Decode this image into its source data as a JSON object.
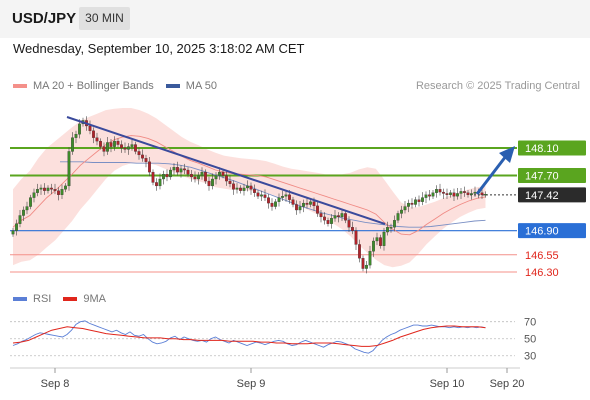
{
  "header": {
    "symbol": "USD/JPY",
    "timeframe": "30 MIN"
  },
  "datetime": "Wednesday, September 10, 2025 3:18:02 AM CET",
  "credit": "Research © 2025 Trading Central",
  "legend_main": [
    {
      "label": "MA 20 + Bollinger Bands",
      "color": "#f4908a"
    },
    {
      "label": "MA 50",
      "color": "#3a5a9c"
    }
  ],
  "legend_rsi": [
    {
      "label": "RSI",
      "color": "#5b7fd6"
    },
    {
      "label": "9MA",
      "color": "#e0261c"
    }
  ],
  "chart_data": {
    "type": "candlestick",
    "x_ticks": [
      "Sep 8",
      "Sep 9",
      "Sep 10",
      "Sep 20"
    ],
    "levels": [
      {
        "value": 148.1,
        "label": "148.10",
        "kind": "target"
      },
      {
        "value": 147.7,
        "label": "147.70",
        "kind": "target"
      },
      {
        "value": 147.42,
        "label": "147.42",
        "kind": "current"
      },
      {
        "value": 146.9,
        "label": "146.90",
        "kind": "pivot"
      },
      {
        "value": 146.55,
        "label": "146.55",
        "kind": "support"
      },
      {
        "value": 146.3,
        "label": "146.30",
        "kind": "support"
      }
    ],
    "close": [
      146.9,
      147.0,
      147.12,
      147.2,
      147.25,
      147.38,
      147.45,
      147.5,
      147.52,
      147.48,
      147.52,
      147.5,
      147.48,
      147.42,
      147.5,
      147.55,
      148.05,
      148.25,
      148.3,
      148.45,
      148.5,
      148.42,
      148.35,
      148.25,
      148.2,
      148.12,
      148.05,
      148.18,
      148.12,
      148.2,
      148.15,
      148.1,
      148.08,
      148.12,
      148.15,
      148.05,
      148.0,
      147.95,
      147.9,
      147.75,
      147.6,
      147.55,
      147.65,
      147.72,
      147.68,
      147.78,
      147.82,
      147.75,
      147.8,
      147.78,
      147.72,
      147.68,
      147.65,
      147.7,
      147.75,
      147.62,
      147.55,
      147.65,
      147.7,
      147.75,
      147.7,
      147.62,
      147.58,
      147.5,
      147.52,
      147.48,
      147.52,
      147.55,
      147.5,
      147.45,
      147.4,
      147.42,
      147.38,
      147.3,
      147.25,
      147.32,
      147.38,
      147.4,
      147.42,
      147.35,
      147.28,
      147.2,
      147.25,
      147.3,
      147.28,
      147.32,
      147.26,
      147.15,
      147.1,
      147.05,
      147.0,
      147.08,
      147.12,
      147.1,
      147.15,
      147.05,
      146.95,
      146.9,
      146.7,
      146.5,
      146.35,
      146.4,
      146.6,
      146.75,
      146.8,
      146.68,
      146.88,
      146.95,
      146.95,
      147.05,
      147.15,
      147.2,
      147.25,
      147.3,
      147.28,
      147.35,
      147.32,
      147.38,
      147.42,
      147.4,
      147.45,
      147.5,
      147.46,
      147.44,
      147.42,
      147.45,
      147.4,
      147.44,
      147.47,
      147.45,
      147.42,
      147.44,
      147.46,
      147.45,
      147.42,
      147.43
    ],
    "ma20": [
      146.95,
      147.05,
      147.12,
      147.25,
      147.38,
      147.48,
      147.6,
      147.72,
      147.85,
      147.95,
      148.05,
      148.15,
      148.22,
      148.26,
      148.28,
      148.27,
      148.24,
      148.19,
      148.12,
      148.05,
      147.98,
      147.92,
      147.88,
      147.83,
      147.78,
      147.75,
      147.73,
      147.72,
      147.71,
      147.7,
      147.68,
      147.64,
      147.6,
      147.56,
      147.52,
      147.48,
      147.44,
      147.4,
      147.36,
      147.32,
      147.28,
      147.24,
      147.2,
      147.14,
      147.02,
      146.92,
      146.85,
      146.84,
      146.9,
      146.99,
      147.07,
      147.15,
      147.22,
      147.28,
      147.33,
      147.37,
      147.39
    ],
    "ma50": [
      147.9,
      147.9,
      147.9,
      147.89,
      147.89,
      147.89,
      147.89,
      147.88,
      147.88,
      147.88,
      147.87,
      147.85,
      147.82,
      147.77,
      147.72,
      147.67,
      147.62,
      147.56,
      147.5,
      147.44,
      147.38,
      147.32,
      147.26,
      147.21,
      147.16,
      147.12,
      147.08,
      147.05,
      147.02,
      147.0,
      146.98,
      146.96,
      146.95,
      146.95,
      146.96,
      146.98,
      147.0,
      147.02,
      147.04,
      147.05
    ],
    "rsi": [
      42,
      44,
      47,
      49,
      52,
      55,
      57,
      56,
      55,
      54,
      53,
      52,
      55,
      60,
      67,
      70,
      71,
      68,
      66,
      64,
      62,
      60,
      58,
      60,
      57,
      55,
      58,
      54,
      53,
      55,
      50,
      46,
      44,
      45,
      47,
      51,
      53,
      49,
      52,
      50,
      48,
      47,
      48,
      46,
      50,
      52,
      49,
      47,
      45,
      48,
      46,
      44,
      42,
      44,
      46,
      45,
      43,
      45,
      47,
      48,
      47,
      44,
      42,
      43,
      46,
      48,
      46,
      44,
      42,
      40,
      43,
      45,
      47,
      46,
      44,
      42,
      38,
      36,
      34,
      33,
      36,
      42,
      48,
      52,
      55,
      57,
      60,
      62,
      64,
      66,
      66,
      65,
      65,
      66,
      65,
      64,
      64,
      63,
      64,
      63,
      64,
      63,
      64,
      63,
      64,
      63
    ],
    "rsi_ma": [
      45,
      46,
      48,
      52,
      56,
      60,
      62,
      64,
      63,
      62,
      60,
      58,
      56,
      55,
      54,
      53,
      52,
      51,
      51,
      51,
      50,
      50,
      49,
      49,
      48,
      48,
      48,
      48,
      47,
      47,
      47,
      47,
      46,
      46,
      45,
      45,
      44,
      44,
      44,
      45,
      45,
      45,
      44,
      43,
      42,
      41,
      41,
      42,
      45,
      48,
      52,
      55,
      58,
      61,
      63,
      64,
      65,
      65,
      64,
      64,
      64,
      63
    ],
    "rsi_levels": [
      70,
      50,
      30
    ]
  }
}
